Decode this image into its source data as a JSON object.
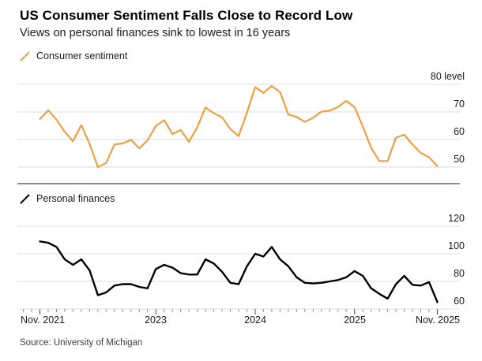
{
  "header": {
    "title": "US Consumer Sentiment Falls Close to Record Low",
    "subtitle": "Views on personal finances sink to lowest in 16 years"
  },
  "source": "Source: University of Michigan",
  "colors": {
    "sentiment_line": "#EAA043",
    "finances_line": "#000000",
    "grid": "#DDDDDD",
    "panel_divider": "#1A1A1A",
    "tick_minor": "#8F8F8F",
    "tick_major": "#4D4D4D",
    "text": "#1A1A1A"
  },
  "x_axis": {
    "ticks": [
      {
        "label": "Nov. 2021",
        "month_index": 0
      },
      {
        "label": "2023",
        "month_index": 14
      },
      {
        "label": "2024",
        "month_index": 26
      },
      {
        "label": "2025",
        "month_index": 38
      },
      {
        "label": "Nov. 2025",
        "month_index": 48
      }
    ]
  },
  "chart_data": [
    {
      "type": "line",
      "series_name": "Consumer sentiment",
      "color": "#EAA043",
      "start": "Nov 2021",
      "end": "Nov 2025",
      "frequency": "monthly",
      "y_ticks": [
        80,
        70,
        60,
        50
      ],
      "y_tick_labels": [
        "80 level",
        "70",
        "60",
        "50"
      ],
      "ylim": [
        46,
        82
      ],
      "grid": "horizontal",
      "legend_position": "top-left",
      "values": [
        67.4,
        70.6,
        67.2,
        62.8,
        59.4,
        65.2,
        58.4,
        50.0,
        51.5,
        58.2,
        58.6,
        59.9,
        56.8,
        59.7,
        64.9,
        67.0,
        62.0,
        63.5,
        59.2,
        64.4,
        71.6,
        69.5,
        68.1,
        63.8,
        61.3,
        69.7,
        79.0,
        76.9,
        79.4,
        77.2,
        69.1,
        68.2,
        66.4,
        67.9,
        70.1,
        70.5,
        71.8,
        74.0,
        71.7,
        64.7,
        57.0,
        52.2,
        52.2,
        60.7,
        61.7,
        58.2,
        55.1,
        53.6,
        50.3
      ]
    },
    {
      "type": "line",
      "series_name": "Personal finances",
      "color": "#000000",
      "start": "Nov 2021",
      "end": "Nov 2025",
      "frequency": "monthly",
      "y_ticks": [
        120,
        100,
        80,
        60
      ],
      "y_tick_labels": [
        "120",
        "100",
        "80",
        "60"
      ],
      "ylim": [
        58,
        124
      ],
      "grid": "horizontal",
      "legend_position": "top-left",
      "values": [
        109,
        108,
        105,
        96,
        92,
        96,
        88,
        70,
        72,
        77,
        78,
        78,
        76,
        75,
        89,
        92,
        90,
        86,
        85,
        85,
        96,
        93,
        87,
        79,
        78,
        91,
        100,
        98,
        105,
        96,
        91,
        83,
        79,
        78.5,
        79,
        80,
        81,
        83,
        87.5,
        84,
        75,
        71,
        67.5,
        78,
        84,
        77.5,
        77,
        79.5,
        65
      ]
    }
  ]
}
